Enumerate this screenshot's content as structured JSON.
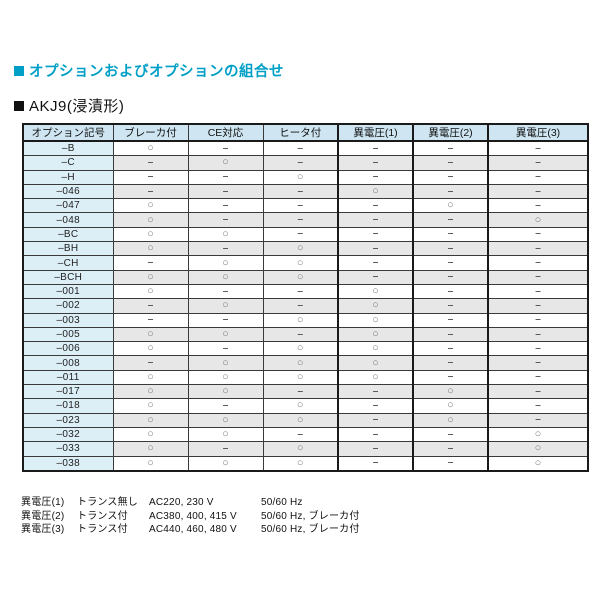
{
  "page": {
    "title": "オプションおよびオプションの組合せ",
    "subtitle": "AKJ9(浸漬形)"
  },
  "colors": {
    "accent_teal": "#00A0C6",
    "header_bg": "#CFE6F2",
    "code_column_bg": "#DCEEF6",
    "alt_row_bg": "#E7E7E7",
    "border": "#1A1A1A"
  },
  "table": {
    "mark_yes": "○",
    "mark_no": "–",
    "columns": [
      "オプション記号",
      "ブレーカ付",
      "CE対応",
      "ヒータ付",
      "異電圧(1)",
      "異電圧(2)",
      "異電圧(3)"
    ],
    "rows": [
      {
        "code": "–B",
        "marks": [
          "○",
          "–",
          "–",
          "–",
          "–",
          "–"
        ]
      },
      {
        "code": "–C",
        "marks": [
          "–",
          "○",
          "–",
          "–",
          "–",
          "–"
        ]
      },
      {
        "code": "–H",
        "marks": [
          "–",
          "–",
          "○",
          "–",
          "–",
          "–"
        ]
      },
      {
        "code": "–046",
        "marks": [
          "–",
          "–",
          "–",
          "○",
          "–",
          "–"
        ]
      },
      {
        "code": "–047",
        "marks": [
          "○",
          "–",
          "–",
          "–",
          "○",
          "–"
        ]
      },
      {
        "code": "–048",
        "marks": [
          "○",
          "–",
          "–",
          "–",
          "–",
          "○"
        ]
      },
      {
        "code": "–BC",
        "marks": [
          "○",
          "○",
          "–",
          "–",
          "–",
          "–"
        ]
      },
      {
        "code": "–BH",
        "marks": [
          "○",
          "–",
          "○",
          "–",
          "–",
          "–"
        ]
      },
      {
        "code": "–CH",
        "marks": [
          "–",
          "○",
          "○",
          "–",
          "–",
          "–"
        ]
      },
      {
        "code": "–BCH",
        "marks": [
          "○",
          "○",
          "○",
          "–",
          "–",
          "–"
        ]
      },
      {
        "code": "–001",
        "marks": [
          "○",
          "–",
          "–",
          "○",
          "–",
          "–"
        ]
      },
      {
        "code": "–002",
        "marks": [
          "–",
          "○",
          "–",
          "○",
          "–",
          "–"
        ]
      },
      {
        "code": "–003",
        "marks": [
          "–",
          "–",
          "○",
          "○",
          "–",
          "–"
        ]
      },
      {
        "code": "–005",
        "marks": [
          "○",
          "○",
          "–",
          "○",
          "–",
          "–"
        ]
      },
      {
        "code": "–006",
        "marks": [
          "○",
          "–",
          "○",
          "○",
          "–",
          "–"
        ]
      },
      {
        "code": "–008",
        "marks": [
          "–",
          "○",
          "○",
          "○",
          "–",
          "–"
        ]
      },
      {
        "code": "–011",
        "marks": [
          "○",
          "○",
          "○",
          "○",
          "–",
          "–"
        ]
      },
      {
        "code": "–017",
        "marks": [
          "○",
          "○",
          "–",
          "–",
          "○",
          "–"
        ]
      },
      {
        "code": "–018",
        "marks": [
          "○",
          "–",
          "○",
          "–",
          "○",
          "–"
        ]
      },
      {
        "code": "–023",
        "marks": [
          "○",
          "○",
          "○",
          "–",
          "○",
          "–"
        ]
      },
      {
        "code": "–032",
        "marks": [
          "○",
          "○",
          "–",
          "–",
          "–",
          "○"
        ]
      },
      {
        "code": "–033",
        "marks": [
          "○",
          "–",
          "○",
          "–",
          "–",
          "○"
        ]
      },
      {
        "code": "–038",
        "marks": [
          "○",
          "○",
          "○",
          "–",
          "–",
          "○"
        ]
      }
    ]
  },
  "notes": [
    {
      "label": "異電圧(1)",
      "transformer": "トランス無し",
      "voltage": "AC220, 230 V",
      "frequency": "50/60 Hz"
    },
    {
      "label": "異電圧(2)",
      "transformer": "トランス付",
      "voltage": "AC380, 400, 415 V",
      "frequency": "50/60 Hz, ブレーカ付"
    },
    {
      "label": "異電圧(3)",
      "transformer": "トランス付",
      "voltage": "AC440, 460, 480 V",
      "frequency": "50/60 Hz, ブレーカ付"
    }
  ]
}
